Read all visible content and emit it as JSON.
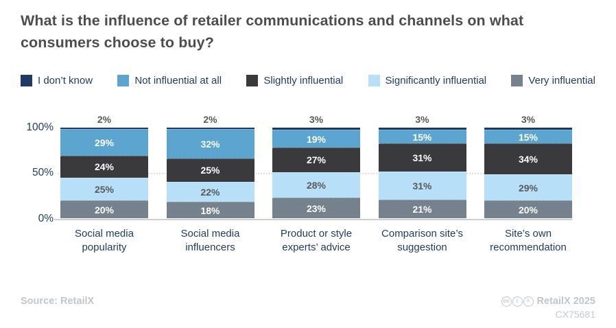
{
  "title": "What is the influence of retailer communications and channels on what consumers choose to buy?",
  "colors": {
    "navy": "#1e3a66",
    "blue": "#5ca5d0",
    "charcoal": "#3a3a3c",
    "lightblue": "#b7e0f8",
    "gray": "#75818c",
    "axis_text": "#1f3a5f",
    "title_text": "#4d4d4d",
    "dark_label": "#595959",
    "footer_text": "#c2c6cb"
  },
  "chart_data": {
    "type": "bar",
    "stacked": true,
    "orientation": "vertical",
    "unit": "%",
    "categories": [
      "Social media popularity",
      "Social media influencers",
      "Product or style experts’ advice",
      "Comparison site’s suggestion",
      "Site’s own recommendation"
    ],
    "series": [
      {
        "name": "I don’t know",
        "color_key": "navy",
        "values": [
          2,
          2,
          3,
          3,
          3
        ],
        "label_position": "above",
        "label_color": "#595959"
      },
      {
        "name": "Not influential at all",
        "color_key": "blue",
        "values": [
          29,
          32,
          19,
          15,
          15
        ],
        "label_position": "inside",
        "label_color": "#ffffff"
      },
      {
        "name": "Slightly influential",
        "color_key": "charcoal",
        "values": [
          24,
          25,
          27,
          31,
          34
        ],
        "label_position": "inside",
        "label_color": "#ffffff"
      },
      {
        "name": "Significantly influential",
        "color_key": "lightblue",
        "values": [
          25,
          22,
          28,
          31,
          29
        ],
        "label_position": "inside",
        "label_color": "#595959"
      },
      {
        "name": "Very influential",
        "color_key": "gray",
        "values": [
          20,
          18,
          23,
          21,
          20
        ],
        "label_position": "inside",
        "label_color": "#ffffff"
      }
    ],
    "yticks": [
      "100%",
      "50%",
      "0%"
    ],
    "ylim": [
      0,
      100
    ],
    "gridline_at": 50,
    "legend_position": "top"
  },
  "footer": {
    "source": "Source: RetailX",
    "license_icons": [
      "cc",
      "by",
      "nd"
    ],
    "credit": "RetailX 2025",
    "code": "CX75681"
  }
}
